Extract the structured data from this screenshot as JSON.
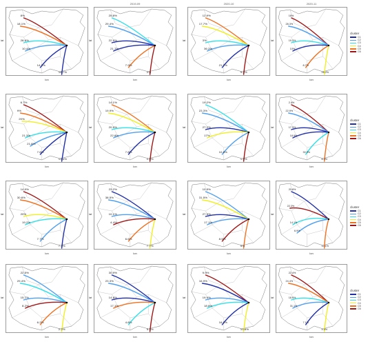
{
  "axes": {
    "x": "lon",
    "y": "lat"
  },
  "legend_title": "cluster",
  "colors": {
    "C1": "#1f2ea8",
    "C2": "#4f9ff0",
    "C3": "#2fe0e8",
    "C4": "#f0f020",
    "C5": "#f07020",
    "C6": "#a01414"
  },
  "panels": [
    {
      "title": "",
      "legend": false,
      "routes": [
        {
          "c": "C6",
          "v": "8%"
        },
        {
          "c": "C5",
          "v": "18.1%"
        },
        {
          "c": "C3",
          "v": "28.6%"
        },
        {
          "c": "C2",
          "v": "10.4%"
        },
        {
          "c": "C1",
          "v": "14.3%"
        },
        {
          "c": "C1",
          "v": "18.7%"
        }
      ]
    },
    {
      "title": "2019-09",
      "legend": false,
      "routes": [
        {
          "c": "C3",
          "v": "25.8%"
        },
        {
          "c": "C2",
          "v": "29.4%"
        },
        {
          "c": "C1",
          "v": "22.9%"
        },
        {
          "c": "C1",
          "v": "21.7%"
        },
        {
          "c": "C5",
          "v": "7.9%"
        },
        {
          "c": "C6",
          "v": "2%"
        }
      ]
    },
    {
      "title": "2020-10",
      "legend": false,
      "routes": [
        {
          "c": "C5",
          "v": "12.9%"
        },
        {
          "c": "C4",
          "v": "17.7%"
        },
        {
          "c": "C3",
          "v": "3%"
        },
        {
          "c": "C2",
          "v": "36.2%"
        },
        {
          "c": "C1",
          "v": "21.2%"
        },
        {
          "c": "C6",
          "v": "9.2%"
        }
      ]
    },
    {
      "title": "2020-11",
      "legend": true,
      "routes": [
        {
          "c": "C6",
          "v": "16%"
        },
        {
          "c": "C2",
          "v": "28.3%"
        },
        {
          "c": "C3",
          "v": "19.3%"
        },
        {
          "c": "C1",
          "v": "10%"
        },
        {
          "c": "C5",
          "v": "8.7%"
        },
        {
          "c": "C4",
          "v": "26.2%"
        }
      ]
    },
    {
      "title": "",
      "legend": false,
      "routes": [
        {
          "c": "C6",
          "v": "6.7%"
        },
        {
          "c": "C5",
          "v": "9%"
        },
        {
          "c": "C4",
          "v": "20%"
        },
        {
          "c": "C3",
          "v": "21.3%"
        },
        {
          "c": "C2",
          "v": "21.8%"
        },
        {
          "c": "C1",
          "v": "7.8%"
        },
        {
          "c": "C1",
          "v": "13.4%"
        }
      ]
    },
    {
      "title": "",
      "legend": false,
      "routes": [
        {
          "c": "C5",
          "v": "14.1%"
        },
        {
          "c": "C4",
          "v": "19.9%"
        },
        {
          "c": "C3",
          "v": "20.9%"
        },
        {
          "c": "C2",
          "v": "22.8%"
        },
        {
          "c": "C1",
          "v": "7.8%"
        },
        {
          "c": "C6",
          "v": "2.6%"
        }
      ]
    },
    {
      "title": "",
      "legend": false,
      "routes": [
        {
          "c": "C3",
          "v": "19.2%"
        },
        {
          "c": "C2",
          "v": "23.3%"
        },
        {
          "c": "C1",
          "v": "27.2%"
        },
        {
          "c": "C4",
          "v": "17%"
        },
        {
          "c": "C2",
          "v": "10.8%"
        },
        {
          "c": "C6",
          "v": "1.9%"
        }
      ]
    },
    {
      "title": "",
      "legend": true,
      "routes": [
        {
          "c": "C6",
          "v": "2.4%"
        },
        {
          "c": "C2",
          "v": "22.9%"
        },
        {
          "c": "C1",
          "v": "17.3%"
        },
        {
          "c": "C1",
          "v": "18.9%"
        },
        {
          "c": "C3",
          "v": "30.9%"
        },
        {
          "c": "C5",
          "v": "8.3%"
        }
      ]
    },
    {
      "title": "",
      "legend": false,
      "routes": [
        {
          "c": "C6",
          "v": "14.9%"
        },
        {
          "c": "C5",
          "v": "30.6%"
        },
        {
          "c": "C4",
          "v": "20%"
        },
        {
          "c": "C3",
          "v": "19.2%"
        },
        {
          "c": "C2",
          "v": "7.7%"
        },
        {
          "c": "C1",
          "v": "7.4%"
        }
      ]
    },
    {
      "title": "",
      "legend": false,
      "routes": [
        {
          "c": "C1",
          "v": "23.2%"
        },
        {
          "c": "C2",
          "v": "38.5%"
        },
        {
          "c": "C2",
          "v": "10.1%"
        },
        {
          "c": "C6",
          "v": "4.4%"
        },
        {
          "c": "C5",
          "v": "6.6%"
        },
        {
          "c": "C4",
          "v": "7.7%"
        }
      ]
    },
    {
      "title": "",
      "legend": false,
      "routes": [
        {
          "c": "C2",
          "v": "10.5%"
        },
        {
          "c": "C4",
          "v": "31.5%"
        },
        {
          "c": "C1",
          "v": "27.5%"
        },
        {
          "c": "C2",
          "v": "17.1%"
        },
        {
          "c": "C6",
          "v": "8.5%"
        },
        {
          "c": "C5",
          "v": "5%"
        }
      ]
    },
    {
      "title": "",
      "legend": true,
      "routes": [
        {
          "c": "C1",
          "v": "20.8%"
        },
        {
          "c": "C6",
          "v": "22.3%"
        },
        {
          "c": "C3",
          "v": "14.1%"
        },
        {
          "c": "C2",
          "v": "6.9%"
        },
        {
          "c": "C5",
          "v": "10.1%"
        }
      ]
    },
    {
      "title": "",
      "legend": false,
      "routes": [
        {
          "c": "C2",
          "v": "22.5%"
        },
        {
          "c": "C3",
          "v": "29.4%"
        },
        {
          "c": "C2",
          "v": "15.7%"
        },
        {
          "c": "C6",
          "v": "8.2%"
        },
        {
          "c": "C5",
          "v": "6.2%"
        },
        {
          "c": "C4",
          "v": "2.2%"
        }
      ]
    },
    {
      "title": "",
      "legend": false,
      "routes": [
        {
          "c": "C1",
          "v": "30.9%"
        },
        {
          "c": "C2",
          "v": "23.3%"
        },
        {
          "c": "C1",
          "v": "14.8%"
        },
        {
          "c": "C5",
          "v": "17.1%"
        },
        {
          "c": "C3",
          "v": "4.8%"
        },
        {
          "c": "C6",
          "v": "5.9%"
        }
      ]
    },
    {
      "title": "",
      "legend": false,
      "routes": [
        {
          "c": "C6",
          "v": "9.9%"
        },
        {
          "c": "C1",
          "v": "16.9%"
        },
        {
          "c": "C2",
          "v": "19.9%"
        },
        {
          "c": "C3",
          "v": "18.8%"
        },
        {
          "c": "C1",
          "v": "16.9%"
        },
        {
          "c": "C4",
          "v": "10.6%"
        }
      ]
    },
    {
      "title": "",
      "legend": true,
      "routes": [
        {
          "c": "C6",
          "v": "22.4%"
        },
        {
          "c": "C5",
          "v": "24.4%"
        },
        {
          "c": "C3",
          "v": "18.9%"
        },
        {
          "c": "C2",
          "v": "31.1%"
        },
        {
          "c": "C1",
          "v": "7.1%"
        },
        {
          "c": "C4",
          "v": "4.4%"
        }
      ]
    }
  ]
}
